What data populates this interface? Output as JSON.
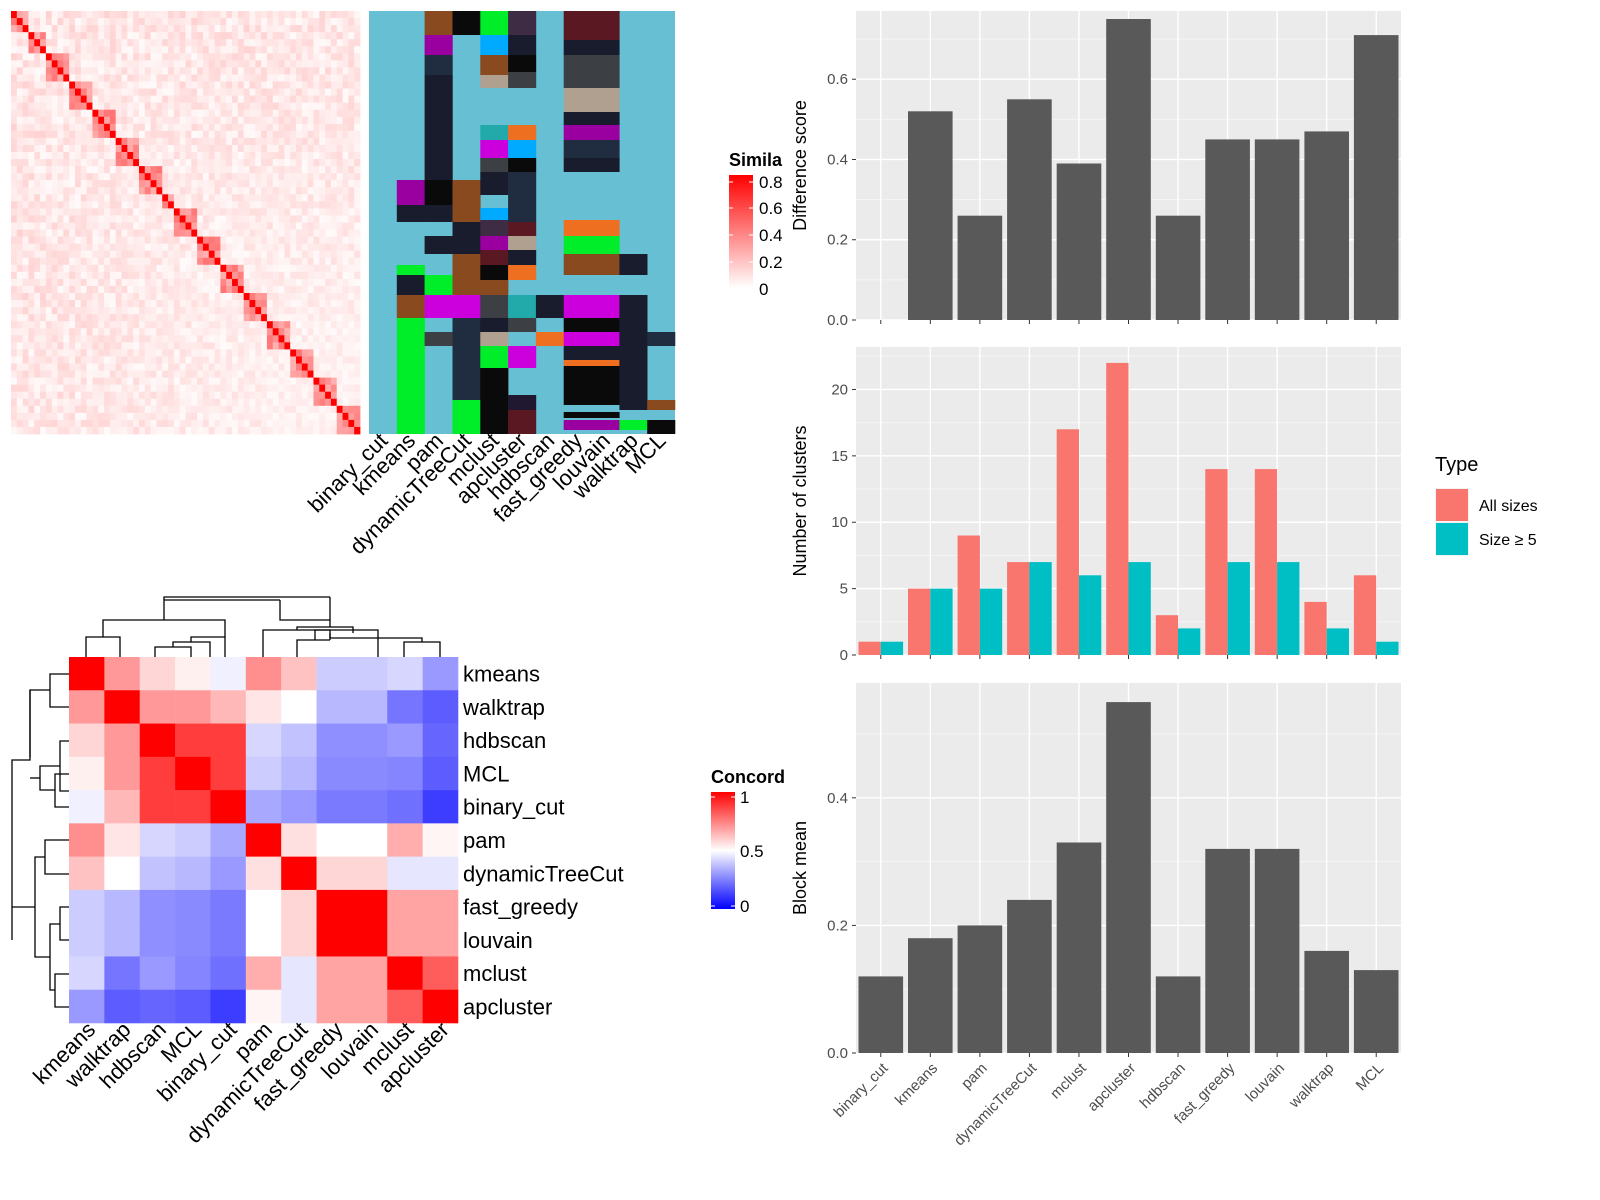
{
  "similarity_heatmap": {
    "legend_title": "Simila",
    "legend_ticks": [
      "0.8",
      "0.6",
      "0.4",
      "0.2",
      "0"
    ],
    "method_labels": [
      "binary_cut",
      "kmeans",
      "pam",
      "dynamicTreeCut",
      "mclust",
      "apcluster",
      "hdbscan",
      "fast_greedy",
      "louvain",
      "walktrap",
      "MCL"
    ],
    "colors": {
      "low": "#ffffff",
      "high": "#ff0000",
      "default_cluster": "#66bfd3"
    }
  },
  "concordance_heatmap": {
    "legend_title": "Concord",
    "legend_ticks": [
      "1",
      "0.5",
      "0"
    ],
    "row_labels": [
      "kmeans",
      "walktrap",
      "hdbscan",
      "MCL",
      "binary_cut",
      "pam",
      "dynamicTreeCut",
      "fast_greedy",
      "louvain",
      "mclust",
      "apcluster"
    ],
    "col_labels": [
      "kmeans",
      "walktrap",
      "hdbscan",
      "MCL",
      "binary_cut",
      "pam",
      "dynamicTreeCut",
      "fast_greedy",
      "louvain",
      "mclust",
      "apcluster"
    ],
    "colors": {
      "low": "#0000ff",
      "mid": "#ffffff",
      "high": "#ff0000"
    }
  },
  "chart_data": [
    {
      "type": "bar",
      "title": "",
      "xlabel": "",
      "ylabel": "Difference score",
      "categories": [
        "binary_cut",
        "kmeans",
        "pam",
        "dynamicTreeCut",
        "mclust",
        "apcluster",
        "hdbscan",
        "fast_greedy",
        "louvain",
        "walktrap",
        "MCL"
      ],
      "values": [
        0.0,
        0.52,
        0.26,
        0.55,
        0.39,
        0.75,
        0.26,
        0.45,
        0.45,
        0.47,
        0.71
      ],
      "ylim": [
        0,
        0.77
      ],
      "yticks": [
        "0.0",
        "0.2",
        "0.4",
        "0.6"
      ],
      "bar_color": "#595959",
      "grid": true
    },
    {
      "type": "bar",
      "title": "",
      "xlabel": "",
      "ylabel": "Number of clusters",
      "categories": [
        "binary_cut",
        "kmeans",
        "pam",
        "dynamicTreeCut",
        "mclust",
        "apcluster",
        "hdbscan",
        "fast_greedy",
        "louvain",
        "walktrap",
        "MCL"
      ],
      "series": [
        {
          "name": "All sizes",
          "values": [
            1,
            5,
            9,
            7,
            17,
            22,
            3,
            14,
            14,
            4,
            6
          ],
          "color": "#f8766d"
        },
        {
          "name": "Size ≥ 5",
          "values": [
            1,
            5,
            5,
            7,
            6,
            7,
            2,
            7,
            7,
            2,
            1
          ],
          "color": "#00bfc4"
        }
      ],
      "legend_title": "Type",
      "legend_position": "right",
      "ylim": [
        0,
        23.2
      ],
      "yticks": [
        "0",
        "5",
        "10",
        "15",
        "20"
      ],
      "grid": true
    },
    {
      "type": "bar",
      "title": "",
      "xlabel": "",
      "ylabel": "Block mean",
      "categories": [
        "binary_cut",
        "kmeans",
        "pam",
        "dynamicTreeCut",
        "mclust",
        "apcluster",
        "hdbscan",
        "fast_greedy",
        "louvain",
        "walktrap",
        "MCL"
      ],
      "values": [
        0.12,
        0.18,
        0.2,
        0.24,
        0.33,
        0.55,
        0.12,
        0.32,
        0.32,
        0.16,
        0.13
      ],
      "ylim": [
        0,
        0.58
      ],
      "yticks": [
        "0.0",
        "0.2",
        "0.4"
      ],
      "bar_color": "#595959",
      "grid": true
    }
  ]
}
